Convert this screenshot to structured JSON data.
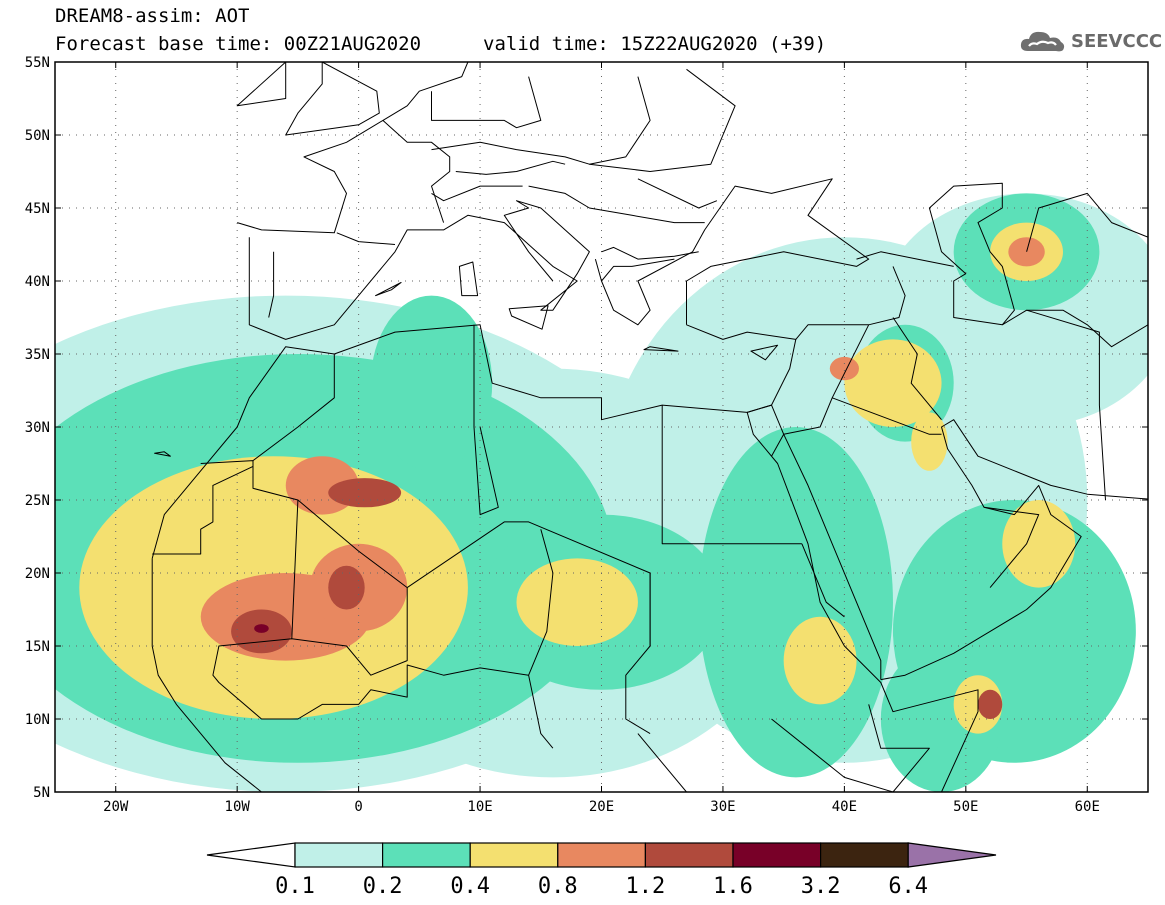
{
  "title": {
    "line1": "DREAM8-assim: AOT",
    "base_time": "Forecast base time: 00Z21AUG2020",
    "valid_time": "valid time: 15Z22AUG2020 (+39)"
  },
  "logo": {
    "text": "SEEVCCC",
    "icon": "cloud-icon"
  },
  "map": {
    "lon_range": [
      -25,
      65
    ],
    "lat_range": [
      5,
      55
    ],
    "x_ticks": [
      {
        "value": -20,
        "label": "20W"
      },
      {
        "value": -10,
        "label": "10W"
      },
      {
        "value": 0,
        "label": "0"
      },
      {
        "value": 10,
        "label": "10E"
      },
      {
        "value": 20,
        "label": "20E"
      },
      {
        "value": 30,
        "label": "30E"
      },
      {
        "value": 40,
        "label": "40E"
      },
      {
        "value": 50,
        "label": "50E"
      },
      {
        "value": 60,
        "label": "60E"
      }
    ],
    "y_ticks": [
      {
        "value": 55,
        "label": "55N"
      },
      {
        "value": 50,
        "label": "50N"
      },
      {
        "value": 45,
        "label": "45N"
      },
      {
        "value": 40,
        "label": "40N"
      },
      {
        "value": 35,
        "label": "35N"
      },
      {
        "value": 30,
        "label": "30N"
      },
      {
        "value": 25,
        "label": "25N"
      },
      {
        "value": 20,
        "label": "20N"
      },
      {
        "value": 15,
        "label": "15N"
      },
      {
        "value": 10,
        "label": "10N"
      },
      {
        "value": 5,
        "label": "5N"
      }
    ],
    "grid": "dotted"
  },
  "colorbar": {
    "levels": [
      "0.1",
      "0.2",
      "0.4",
      "0.8",
      "1.2",
      "1.6",
      "3.2",
      "6.4"
    ],
    "colors": [
      "#ffffff",
      "#c0f0e8",
      "#5ce0b8",
      "#f4e070",
      "#e88860",
      "#b04a3c",
      "#780028",
      "#3c2410",
      "#9a72a8"
    ]
  },
  "regions": [
    {
      "level": 1,
      "lon": -6,
      "lat": 22,
      "rx": 32,
      "ry": 17
    },
    {
      "level": 1,
      "lon": 16,
      "lat": 20,
      "rx": 20,
      "ry": 14
    },
    {
      "level": 1,
      "lon": 40,
      "lat": 25,
      "rx": 20,
      "ry": 18
    },
    {
      "level": 1,
      "lon": 55,
      "lat": 38,
      "rx": 12,
      "ry": 8
    },
    {
      "level": 2,
      "lon": -5,
      "lat": 21,
      "rx": 26,
      "ry": 14
    },
    {
      "level": 2,
      "lon": 6,
      "lat": 33,
      "rx": 5,
      "ry": 6
    },
    {
      "level": 2,
      "lon": 20,
      "lat": 18,
      "rx": 10,
      "ry": 6
    },
    {
      "level": 2,
      "lon": 36,
      "lat": 18,
      "rx": 8,
      "ry": 12
    },
    {
      "level": 2,
      "lon": 45,
      "lat": 33,
      "rx": 4,
      "ry": 4
    },
    {
      "level": 2,
      "lon": 55,
      "lat": 42,
      "rx": 6,
      "ry": 4
    },
    {
      "level": 2,
      "lon": 54,
      "lat": 16,
      "rx": 10,
      "ry": 9
    },
    {
      "level": 2,
      "lon": 48,
      "lat": 10,
      "rx": 5,
      "ry": 5
    },
    {
      "level": 3,
      "lon": -7,
      "lat": 19,
      "rx": 16,
      "ry": 9
    },
    {
      "level": 3,
      "lon": 18,
      "lat": 18,
      "rx": 5,
      "ry": 3
    },
    {
      "level": 3,
      "lon": 38,
      "lat": 14,
      "rx": 3,
      "ry": 3
    },
    {
      "level": 3,
      "lon": 44,
      "lat": 33,
      "rx": 4,
      "ry": 3
    },
    {
      "level": 3,
      "lon": 47,
      "lat": 29,
      "rx": 1.5,
      "ry": 2
    },
    {
      "level": 3,
      "lon": 56,
      "lat": 22,
      "rx": 3,
      "ry": 3
    },
    {
      "level": 3,
      "lon": 55,
      "lat": 42,
      "rx": 3,
      "ry": 2
    },
    {
      "level": 3,
      "lon": 51,
      "lat": 11,
      "rx": 2,
      "ry": 2
    },
    {
      "level": 4,
      "lon": -6,
      "lat": 17,
      "rx": 7,
      "ry": 3
    },
    {
      "level": 4,
      "lon": -3,
      "lat": 26,
      "rx": 3,
      "ry": 2
    },
    {
      "level": 4,
      "lon": 0,
      "lat": 19,
      "rx": 4,
      "ry": 3
    },
    {
      "level": 4,
      "lon": 40,
      "lat": 34,
      "rx": 1.2,
      "ry": 0.8
    },
    {
      "level": 4,
      "lon": 55,
      "lat": 42,
      "rx": 1.5,
      "ry": 1
    },
    {
      "level": 5,
      "lon": -8,
      "lat": 16,
      "rx": 2.5,
      "ry": 1.5
    },
    {
      "level": 5,
      "lon": 0.5,
      "lat": 25.5,
      "rx": 3,
      "ry": 1
    },
    {
      "level": 5,
      "lon": -1,
      "lat": 19,
      "rx": 1.5,
      "ry": 1.5
    },
    {
      "level": 5,
      "lon": 52,
      "lat": 11,
      "rx": 1,
      "ry": 1
    },
    {
      "level": 6,
      "lon": -8,
      "lat": 16.2,
      "rx": 0.6,
      "ry": 0.3
    }
  ],
  "coast": [
    [
      [
        -17,
        21
      ],
      [
        -16,
        24
      ],
      [
        -13,
        27
      ],
      [
        -10,
        30
      ],
      [
        -9,
        32
      ],
      [
        -6,
        35.5
      ],
      [
        -2,
        35
      ],
      [
        3,
        36.5
      ],
      [
        10,
        37
      ],
      [
        11,
        33
      ],
      [
        15,
        32
      ],
      [
        20,
        32
      ],
      [
        20,
        30.5
      ],
      [
        25,
        31.5
      ],
      [
        32,
        31
      ],
      [
        34,
        31.5
      ],
      [
        35.5,
        34
      ],
      [
        36,
        36
      ],
      [
        32,
        36.5
      ],
      [
        30,
        36
      ],
      [
        27,
        37
      ]
    ]
  ],
  "coast2": [
    [
      [
        -9,
        43
      ],
      [
        -9,
        37
      ],
      [
        -6,
        36
      ],
      [
        -2,
        37
      ],
      [
        0,
        39
      ],
      [
        3,
        42
      ],
      [
        4,
        43.5
      ],
      [
        7,
        43.5
      ],
      [
        9,
        44.5
      ],
      [
        12,
        44
      ],
      [
        16,
        41
      ],
      [
        18,
        40
      ],
      [
        15,
        38
      ],
      [
        16,
        38
      ],
      [
        18,
        40.5
      ],
      [
        19,
        42
      ],
      [
        15,
        45
      ],
      [
        13,
        45.5
      ],
      [
        14,
        45
      ],
      [
        12,
        44.5
      ],
      [
        14,
        42
      ],
      [
        16,
        40
      ]
    ]
  ],
  "coast3": [
    [
      [
        27,
        37
      ],
      [
        27,
        40
      ],
      [
        29,
        41
      ],
      [
        35,
        42
      ],
      [
        41,
        41
      ],
      [
        42,
        41.5
      ],
      [
        37,
        44.5
      ],
      [
        39,
        47
      ],
      [
        34,
        46
      ],
      [
        31,
        46.5
      ],
      [
        28.5,
        43.5
      ],
      [
        27.5,
        42
      ],
      [
        23,
        40
      ],
      [
        24,
        38
      ],
      [
        23,
        37
      ],
      [
        21,
        38
      ],
      [
        20,
        40
      ],
      [
        19.5,
        41.5
      ]
    ]
  ],
  "coast4": [
    [
      [
        -10,
        44
      ],
      [
        -8,
        43.5
      ],
      [
        -2,
        43.3
      ],
      [
        -1,
        46
      ],
      [
        -2,
        47.5
      ],
      [
        -4.5,
        48.5
      ],
      [
        -1,
        49.5
      ],
      [
        2,
        51
      ],
      [
        4,
        52
      ],
      [
        5,
        53
      ],
      [
        8.5,
        54
      ],
      [
        9,
        55
      ]
    ]
  ],
  "coast5": [
    [
      [
        32,
        31
      ],
      [
        32.5,
        29.5
      ],
      [
        34.5,
        27.5
      ],
      [
        37,
        22
      ],
      [
        38,
        18
      ],
      [
        40,
        15
      ],
      [
        43,
        12.5
      ],
      [
        44,
        10.5
      ],
      [
        51,
        12
      ],
      [
        51,
        10.5
      ],
      [
        48,
        5
      ]
    ]
  ],
  "coast6": [
    [
      [
        43,
        12.7
      ],
      [
        45,
        13
      ],
      [
        49,
        14.5
      ],
      [
        52,
        16
      ],
      [
        55,
        17.5
      ],
      [
        57,
        19
      ],
      [
        59.5,
        22.5
      ],
      [
        57,
        24
      ],
      [
        56,
        26
      ],
      [
        54,
        24
      ],
      [
        51.5,
        24.5
      ],
      [
        50.5,
        26
      ],
      [
        48.5,
        28.5
      ],
      [
        48,
        30
      ],
      [
        49,
        30.5
      ],
      [
        51,
        28
      ],
      [
        54,
        27
      ],
      [
        57,
        26
      ],
      [
        60,
        25.4
      ],
      [
        66,
        25
      ]
    ]
  ],
  "coast7": [
    [
      [
        34,
        28
      ],
      [
        35,
        29.5
      ],
      [
        37,
        26
      ],
      [
        39,
        22
      ],
      [
        41,
        18
      ],
      [
        43,
        14
      ],
      [
        43,
        12.7
      ]
    ]
  ],
  "coast8": [
    [
      [
        -17,
        21
      ],
      [
        -17,
        18
      ],
      [
        -17,
        15
      ],
      [
        -16.5,
        13
      ],
      [
        -15,
        11
      ],
      [
        -13,
        9
      ],
      [
        -11,
        7
      ],
      [
        -8,
        5
      ]
    ]
  ],
  "caspian": [
    [
      [
        47,
        45
      ],
      [
        49,
        46.5
      ],
      [
        53,
        46.7
      ],
      [
        53,
        45
      ],
      [
        51,
        44
      ],
      [
        52,
        42
      ],
      [
        53,
        41
      ],
      [
        54,
        38
      ],
      [
        53,
        37
      ],
      [
        49,
        37.5
      ],
      [
        49,
        40
      ],
      [
        50,
        40.5
      ],
      [
        48,
        42
      ],
      [
        47.5,
        43.5
      ],
      [
        47,
        45
      ]
    ]
  ],
  "borders": [
    [
      [
        -13,
        27.5
      ],
      [
        -8.7,
        27.7
      ],
      [
        -8.7,
        25.8
      ],
      [
        -5,
        25
      ],
      [
        0,
        21.5
      ],
      [
        4,
        19
      ],
      [
        12,
        23.5
      ],
      [
        14,
        23.5
      ],
      [
        24,
        20
      ],
      [
        24,
        15
      ]
    ],
    [
      [
        -17,
        21.3
      ],
      [
        -13,
        21.3
      ],
      [
        -13,
        23
      ],
      [
        -12,
        23.5
      ],
      [
        -12,
        26
      ],
      [
        -8.7,
        27.3
      ]
    ],
    [
      [
        -8.7,
        27.7
      ],
      [
        -5,
        30
      ],
      [
        -2,
        32
      ],
      [
        -2,
        35
      ]
    ],
    [
      [
        9.5,
        30
      ],
      [
        9.5,
        37
      ]
    ],
    [
      [
        10,
        30
      ],
      [
        11.5,
        24.5
      ],
      [
        10,
        24
      ],
      [
        9.5,
        30
      ]
    ],
    [
      [
        25,
        31.5
      ],
      [
        25,
        22
      ],
      [
        36.5,
        22
      ]
    ],
    [
      [
        24,
        20
      ],
      [
        24,
        15
      ],
      [
        22,
        13
      ],
      [
        22,
        10
      ],
      [
        24,
        9
      ]
    ],
    [
      [
        15,
        23
      ],
      [
        16,
        20
      ],
      [
        15.5,
        16
      ],
      [
        14,
        13
      ],
      [
        15,
        9
      ],
      [
        16,
        8
      ]
    ],
    [
      [
        -5.5,
        15.5
      ],
      [
        -5,
        25
      ]
    ],
    [
      [
        4,
        19
      ],
      [
        4,
        14
      ],
      [
        1,
        13
      ],
      [
        -1,
        15
      ],
      [
        -5.5,
        15.5
      ],
      [
        -11.5,
        15
      ],
      [
        -12,
        13
      ],
      [
        -11.5,
        12.5
      ],
      [
        -8,
        10
      ],
      [
        -5,
        10
      ],
      [
        -3,
        11
      ],
      [
        0,
        11
      ],
      [
        1,
        12
      ],
      [
        4,
        11.5
      ],
      [
        4,
        13.7
      ],
      [
        7,
        13
      ],
      [
        10,
        13.5
      ],
      [
        14,
        13
      ]
    ],
    [
      [
        32,
        31
      ],
      [
        34,
        31.5
      ],
      [
        35,
        29.5
      ],
      [
        38,
        30
      ],
      [
        39,
        32
      ],
      [
        42,
        37
      ],
      [
        44.5,
        37.5
      ],
      [
        45,
        39
      ],
      [
        44,
        41
      ]
    ],
    [
      [
        36,
        36
      ],
      [
        37,
        37
      ],
      [
        42,
        37
      ]
    ],
    [
      [
        39,
        32
      ],
      [
        47,
        29.5
      ],
      [
        48,
        29.5
      ]
    ],
    [
      [
        52,
        19
      ],
      [
        55,
        22
      ],
      [
        56,
        24
      ],
      [
        51.5,
        24.5
      ]
    ],
    [
      [
        44,
        37.5
      ],
      [
        46,
        35
      ],
      [
        45.5,
        33
      ],
      [
        48,
        30.5
      ]
    ],
    [
      [
        53,
        37
      ],
      [
        55,
        38
      ],
      [
        61,
        36.5
      ],
      [
        61,
        31.5
      ],
      [
        61.5,
        25
      ]
    ],
    [
      [
        36.5,
        22
      ],
      [
        38.5,
        18
      ],
      [
        40,
        17
      ]
    ],
    [
      [
        23,
        9
      ],
      [
        27,
        5
      ],
      [
        30,
        4
      ]
    ],
    [
      [
        34,
        10
      ],
      [
        37,
        8
      ],
      [
        40,
        6
      ],
      [
        44,
        5
      ]
    ],
    [
      [
        42,
        11
      ],
      [
        43,
        8
      ],
      [
        47,
        8
      ],
      [
        44,
        5
      ]
    ],
    [
      [
        23,
        47
      ],
      [
        28,
        45
      ],
      [
        29.5,
        45.5
      ]
    ],
    [
      [
        14,
        46.5
      ],
      [
        17,
        46
      ],
      [
        19,
        45
      ],
      [
        22.5,
        44.5
      ],
      [
        26,
        44
      ],
      [
        28.5,
        44
      ]
    ],
    [
      [
        19,
        48
      ],
      [
        24,
        47.5
      ],
      [
        29,
        48
      ],
      [
        31,
        52
      ],
      [
        27,
        54.5
      ]
    ],
    [
      [
        6,
        49
      ],
      [
        10,
        49.5
      ],
      [
        13,
        49
      ],
      [
        17,
        48.5
      ],
      [
        19,
        48
      ],
      [
        22,
        48.5
      ],
      [
        24,
        51
      ],
      [
        23,
        54
      ]
    ],
    [
      [
        14,
        54
      ],
      [
        15,
        51
      ],
      [
        13,
        50.5
      ],
      [
        12,
        51
      ],
      [
        6,
        51
      ],
      [
        6,
        53
      ]
    ],
    [
      [
        8,
        47.5
      ],
      [
        10.5,
        47.3
      ],
      [
        13,
        47.5
      ],
      [
        16,
        48.2
      ],
      [
        17,
        48
      ]
    ],
    [
      [
        6,
        46
      ],
      [
        7,
        45.5
      ],
      [
        10,
        46.5
      ],
      [
        13.5,
        46.5
      ]
    ],
    [
      [
        2,
        51
      ],
      [
        4,
        49.5
      ],
      [
        6,
        49.5
      ],
      [
        7.5,
        48.5
      ],
      [
        7.5,
        47.5
      ],
      [
        6,
        46.5
      ],
      [
        7,
        44
      ]
    ],
    [
      [
        -1.8,
        43.3
      ],
      [
        0,
        42.7
      ],
      [
        3,
        42.5
      ]
    ],
    [
      [
        -7,
        42
      ],
      [
        -7,
        39
      ],
      [
        -7.4,
        37.5
      ]
    ],
    [
      [
        20,
        42
      ],
      [
        21,
        42.3
      ],
      [
        23,
        41.5
      ],
      [
        26,
        41.7
      ],
      [
        28,
        42
      ]
    ],
    [
      [
        20,
        40
      ],
      [
        21,
        41
      ],
      [
        22.5,
        41
      ],
      [
        26,
        41.5
      ]
    ],
    [
      [
        41,
        41.5
      ],
      [
        43,
        42
      ],
      [
        46,
        41.5
      ],
      [
        49,
        41
      ]
    ],
    [
      [
        55,
        42
      ],
      [
        56,
        45
      ],
      [
        60,
        46
      ],
      [
        62,
        44
      ],
      [
        65,
        43
      ]
    ],
    [
      [
        55,
        38
      ],
      [
        58,
        38
      ],
      [
        60,
        37
      ],
      [
        62,
        35.5
      ],
      [
        65,
        37
      ]
    ]
  ],
  "islands": [
    [
      [
        9.4,
        41.3
      ],
      [
        9.8,
        39
      ],
      [
        9.6,
        39
      ],
      [
        8.5,
        39
      ],
      [
        8.3,
        41
      ],
      [
        9.4,
        41.3
      ]
    ],
    [
      [
        12.4,
        38.1
      ],
      [
        15.6,
        38.3
      ],
      [
        15.1,
        36.7
      ],
      [
        12.6,
        37.6
      ],
      [
        12.4,
        38.1
      ]
    ],
    [
      [
        23.5,
        35.3
      ],
      [
        26.3,
        35.2
      ],
      [
        24,
        35.5
      ],
      [
        23.5,
        35.3
      ]
    ],
    [
      [
        32.3,
        35.2
      ],
      [
        34.5,
        35.6
      ],
      [
        33.5,
        34.6
      ],
      [
        32.3,
        35.2
      ]
    ],
    [
      [
        1.4,
        39
      ],
      [
        3.5,
        39.9
      ],
      [
        2.7,
        39.4
      ],
      [
        1.4,
        39
      ]
    ],
    [
      [
        -6,
        50
      ],
      [
        -5,
        51.5
      ],
      [
        -3,
        53.5
      ],
      [
        -3,
        55
      ],
      [
        1.5,
        53
      ],
      [
        1.7,
        51.5
      ],
      [
        0,
        50.7
      ],
      [
        -6,
        50
      ]
    ],
    [
      [
        -10,
        52
      ],
      [
        -6,
        55
      ],
      [
        -6,
        52.5
      ],
      [
        -10,
        52
      ]
    ],
    [
      [
        -16,
        28.3
      ],
      [
        -16.8,
        28.2
      ],
      [
        -15.5,
        28
      ],
      [
        -16,
        28.3
      ]
    ]
  ]
}
